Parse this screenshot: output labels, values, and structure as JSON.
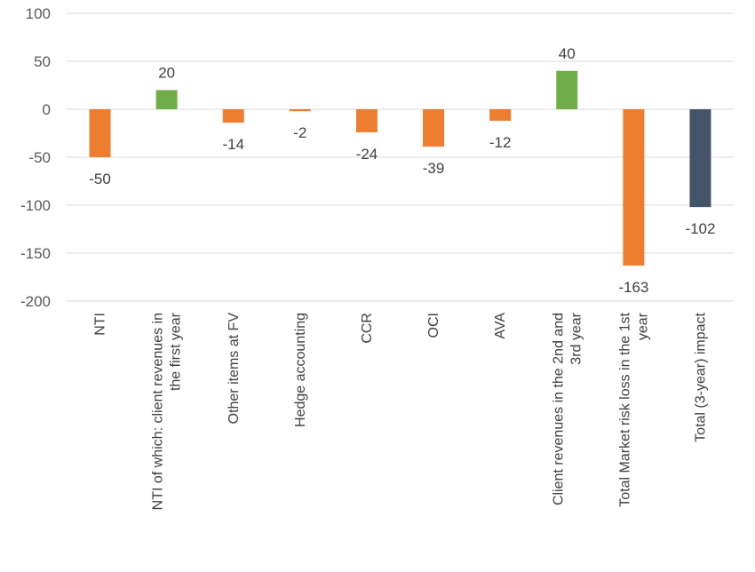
{
  "chart_data": {
    "type": "bar",
    "categories": [
      [
        "NTI"
      ],
      [
        "NTI of which: client revenues in",
        "the first year"
      ],
      [
        "Other items at FV"
      ],
      [
        "Hedge accounting"
      ],
      [
        "CCR"
      ],
      [
        "OCI"
      ],
      [
        "AVA"
      ],
      [
        "Client revenues in the 2nd and",
        "3rd year"
      ],
      [
        "Total Market risk loss in the 1st",
        "year"
      ],
      [
        "Total (3-year) impact"
      ]
    ],
    "values": [
      -50,
      20,
      -14,
      -2,
      -24,
      -39,
      -12,
      40,
      -163,
      -102
    ],
    "value_labels": [
      "-50",
      "20",
      "-14",
      "-2",
      "-24",
      "-39",
      "-12",
      "40",
      "-163",
      "-102"
    ],
    "colors": [
      "#ED7D31",
      "#70AD47",
      "#ED7D31",
      "#ED7D31",
      "#ED7D31",
      "#ED7D31",
      "#ED7D31",
      "#70AD47",
      "#ED7D31",
      "#44546A"
    ],
    "ylim": [
      -200,
      100
    ],
    "yticks": [
      100,
      50,
      0,
      -50,
      -100,
      -150,
      -200
    ],
    "ytick_labels": [
      "100",
      "50",
      "0",
      "-50",
      "-100",
      "-150",
      "-200"
    ],
    "grid": true,
    "legend": "none"
  }
}
